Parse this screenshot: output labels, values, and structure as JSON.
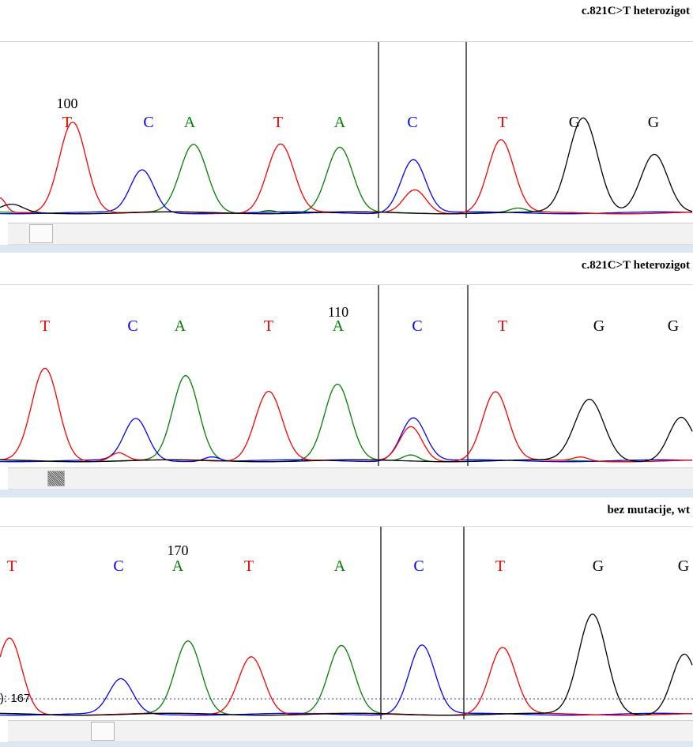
{
  "colors": {
    "A": "#008000",
    "C": "#0000ff",
    "G": "#000000",
    "T": "#ff0000"
  },
  "panels": [
    {
      "title": "c.821C>T heterozigot",
      "position_number": "100",
      "position_number_index": 0,
      "cursor_label": "",
      "bases": [
        "T",
        "C",
        "A",
        "T",
        "A",
        "C",
        "T",
        "G",
        "G"
      ],
      "scroll_fraction": 0.03
    },
    {
      "title": "c.821C>T heterozigot",
      "position_number": "110",
      "position_number_index": 4,
      "cursor_label": "",
      "bases": [
        "T",
        "C",
        "A",
        "T",
        "A",
        "C",
        "T",
        "G",
        "G"
      ],
      "scroll_fraction": 0.06
    },
    {
      "title": "bez mutacije, wt",
      "position_number": "170",
      "position_number_index": 2,
      "cursor_label": "): 167",
      "bases": [
        "T",
        "C",
        "A",
        "T",
        "A",
        "C",
        "T",
        "G",
        "G"
      ],
      "scroll_fraction": 0.13
    }
  ]
}
